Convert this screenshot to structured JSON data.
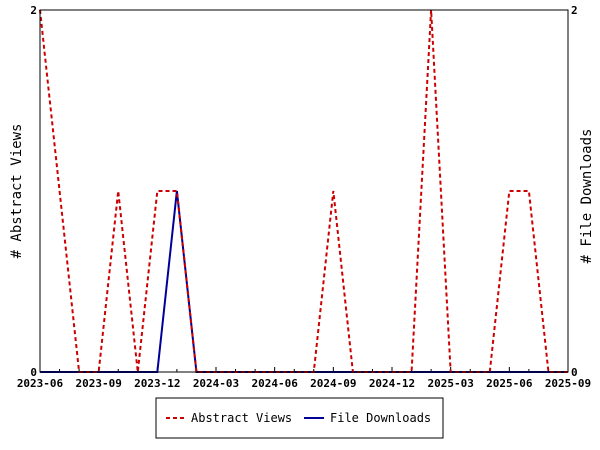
{
  "chart_data": {
    "type": "line",
    "x": [
      "2023-06",
      "2023-07",
      "2023-08",
      "2023-09",
      "2023-10",
      "2023-11",
      "2023-12",
      "2024-01",
      "2024-02",
      "2024-03",
      "2024-04",
      "2024-05",
      "2024-06",
      "2024-07",
      "2024-08",
      "2024-09",
      "2024-10",
      "2024-11",
      "2024-12",
      "2025-01",
      "2025-02",
      "2025-03",
      "2025-04",
      "2025-05",
      "2025-06",
      "2025-07",
      "2025-08",
      "2025-09"
    ],
    "x_tick_labels": [
      "2023-06",
      "2023-09",
      "2023-12",
      "2024-03",
      "2024-06",
      "2024-09",
      "2024-12",
      "2025-03",
      "2025-06",
      "2025-09"
    ],
    "series": [
      {
        "name": "Abstract Views",
        "axis": "left",
        "color": "#cc0000",
        "style": "dashed",
        "values": [
          2,
          1,
          0,
          0,
          1,
          0,
          1,
          1,
          0,
          0,
          0,
          0,
          0,
          0,
          0,
          1,
          0,
          0,
          0,
          0,
          2,
          0,
          0,
          0,
          1,
          1,
          0,
          0
        ]
      },
      {
        "name": "File Downloads",
        "axis": "right",
        "color": "#000099",
        "style": "solid",
        "values": [
          0,
          0,
          0,
          0,
          0,
          0,
          0,
          1,
          0,
          0,
          0,
          0,
          0,
          0,
          0,
          0,
          0,
          0,
          0,
          0,
          0,
          0,
          0,
          0,
          0,
          0,
          0,
          0
        ]
      }
    ],
    "ylabel_left": "# Abstract Views",
    "ylabel_right": "# File Downloads",
    "ylim_left": [
      0,
      2
    ],
    "ylim_right": [
      0,
      2
    ],
    "y_ticks_left": [
      "0",
      "2"
    ],
    "y_ticks_right": [
      "0",
      "2"
    ],
    "legend_position": "bottom-center",
    "grid": false
  }
}
